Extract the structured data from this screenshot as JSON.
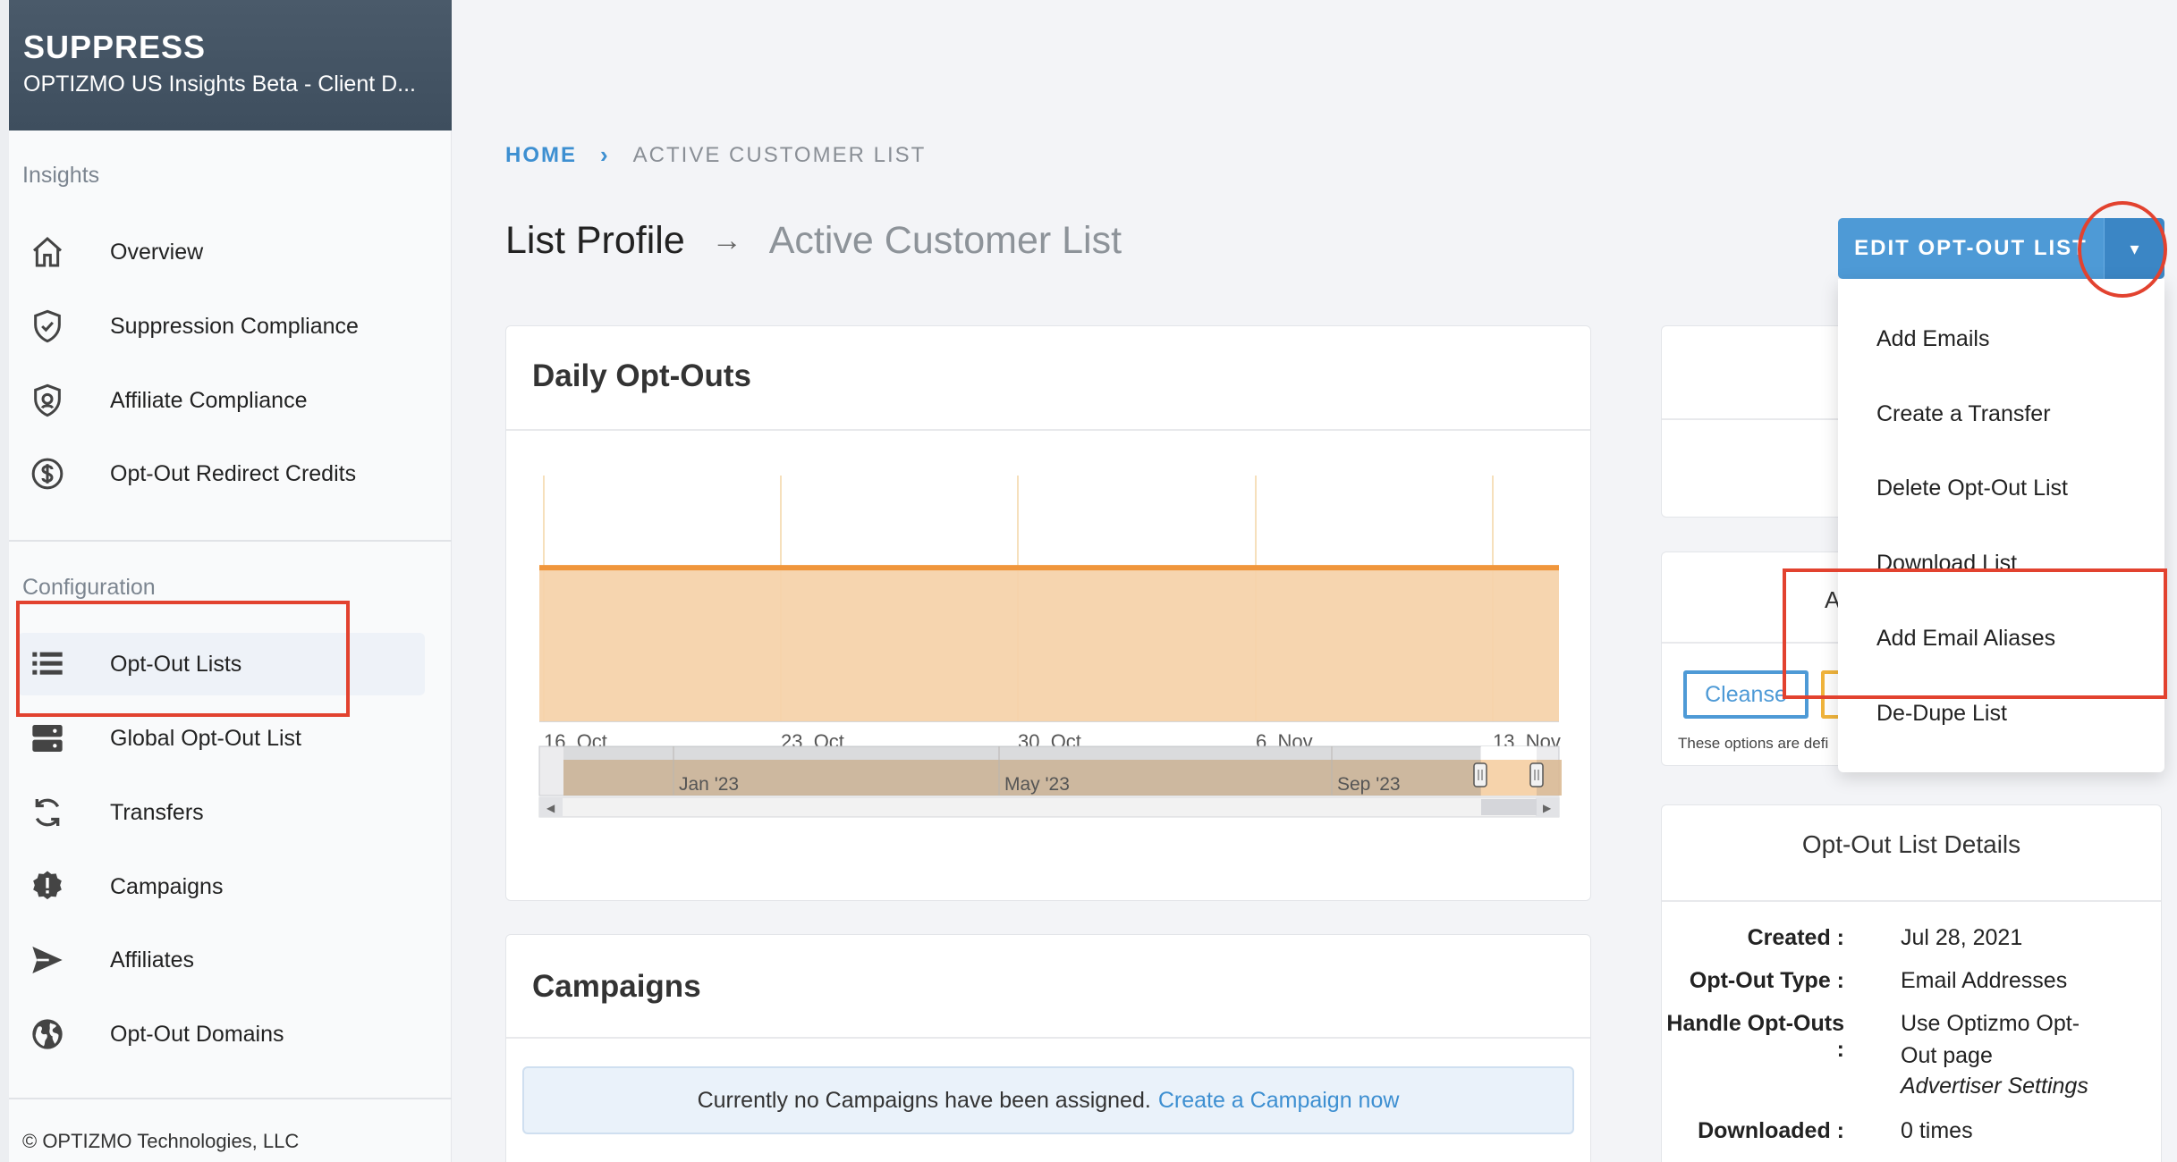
{
  "brand": {
    "title": "SUPPRESS",
    "subtitle": "OPTIZMO US Insights Beta - Client D..."
  },
  "sidebar": {
    "insights_heading": "Insights",
    "insights_items": [
      {
        "label": "Overview",
        "icon": "home-icon"
      },
      {
        "label": "Suppression Compliance",
        "icon": "shield-check-icon"
      },
      {
        "label": "Affiliate Compliance",
        "icon": "shield-user-icon"
      },
      {
        "label": "Opt-Out Redirect Credits",
        "icon": "dollar-circle-icon"
      }
    ],
    "config_heading": "Configuration",
    "config_items": [
      {
        "label": "Opt-Out Lists",
        "icon": "list-icon",
        "active": true
      },
      {
        "label": "Global Opt-Out List",
        "icon": "server-icon"
      },
      {
        "label": "Transfers",
        "icon": "sync-icon"
      },
      {
        "label": "Campaigns",
        "icon": "alert-badge-icon"
      },
      {
        "label": "Affiliates",
        "icon": "send-icon"
      },
      {
        "label": "Opt-Out Domains",
        "icon": "globe-icon"
      }
    ],
    "copyright": "© OPTIZMO Technologies, LLC"
  },
  "breadcrumb": {
    "home": "HOME",
    "separator": "›",
    "current": "ACTIVE CUSTOMER LIST"
  },
  "page_title": {
    "main": "List Profile",
    "arrow": "→",
    "sub": "Active Customer List"
  },
  "edit_button": {
    "label": "EDIT OPT-OUT LIST",
    "caret": "▾"
  },
  "dropdown": {
    "items": [
      "Add Emails",
      "Create a Transfer",
      "Delete Opt-Out List",
      "Download List",
      "Add Email Aliases",
      "De-Dupe List"
    ]
  },
  "daily_optouts": {
    "title": "Daily Opt-Outs"
  },
  "chart_data": {
    "type": "area",
    "title": "",
    "x_ticks": [
      "16. Oct",
      "23. Oct",
      "30. Oct",
      "6. Nov",
      "13. Nov"
    ],
    "navigator_ticks": [
      "Jan '23",
      "May '23",
      "Sep '23"
    ],
    "series": [
      {
        "values": [
          1,
          1,
          1,
          1,
          1,
          1,
          1,
          1,
          1,
          1,
          1,
          1,
          1,
          1,
          1,
          1,
          1,
          1,
          1,
          1,
          1,
          1,
          1,
          1,
          1,
          1,
          1,
          1,
          1,
          1,
          1,
          1,
          1,
          1
        ]
      }
    ],
    "colors": {
      "line": "#f0963c",
      "fill": "#f6d3ab",
      "grid": "#f3d6a6"
    }
  },
  "campaigns": {
    "title": "Campaigns",
    "notice_text": "Currently no Campaigns have been assigned.",
    "notice_link": "Create a Campaign now"
  },
  "right_panel": {
    "partial_letter": "A",
    "cleanse_button": "Cleanse",
    "options_note": "These options are defi"
  },
  "details": {
    "title": "Opt-Out List Details",
    "rows": [
      {
        "key": "Created :",
        "value": "Jul 28, 2021"
      },
      {
        "key": "Opt-Out Type :",
        "value": "Email Addresses"
      },
      {
        "key": "Handle Opt-Outs :",
        "value": "Use Optizmo Opt-Out page",
        "extra": "Advertiser Settings"
      },
      {
        "key": "Downloaded :",
        "value": "0 times"
      }
    ]
  },
  "colors": {
    "accent": "#4e9ad6",
    "highlight": "#e2422f",
    "brand_bg": "#45556a"
  }
}
